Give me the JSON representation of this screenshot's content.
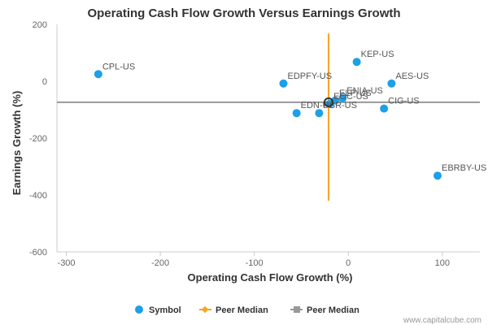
{
  "chart_data": {
    "type": "scatter",
    "title": "Operating Cash Flow Growth Versus Earnings Growth",
    "xlabel": "Operating Cash Flow Growth (%)",
    "ylabel": "Earnings Growth (%)",
    "xlim": [
      -310,
      140
    ],
    "ylim": [
      -600,
      200
    ],
    "xticks": [
      -300,
      -200,
      -100,
      0,
      100
    ],
    "xtick_labels": [
      "-300",
      "-200",
      "-100",
      "0",
      "100"
    ],
    "yticks": [
      -600,
      -400,
      -200,
      0,
      200
    ],
    "ytick_labels": [
      "-600",
      "-400",
      "-200",
      "0",
      "200"
    ],
    "grid": false,
    "legend_position": "bottom",
    "series": [
      {
        "name": "Symbol",
        "color": "#1ca0e8",
        "points": [
          {
            "label": "CPL-US",
            "x": -266,
            "y": 25
          },
          {
            "label": "EDPFY-US",
            "x": -69,
            "y": -8
          },
          {
            "label": "KEP-US",
            "x": 9,
            "y": 68
          },
          {
            "label": "AES-US",
            "x": 46,
            "y": -8
          },
          {
            "label": "ENIA-US",
            "x": -6,
            "y": -60
          },
          {
            "label": "ELP-US",
            "x": -14,
            "y": -68
          },
          {
            "label": "EOC-US",
            "x": -20,
            "y": -80
          },
          {
            "label": "EDN-US",
            "x": -55,
            "y": -112
          },
          {
            "label": "PBR-US",
            "x": -31,
            "y": -112
          },
          {
            "label": "CIG-US",
            "x": 38,
            "y": -96
          },
          {
            "label": "EBRBY-US",
            "x": 95,
            "y": -332
          }
        ]
      },
      {
        "name": "Peer Median",
        "type": "vertical-line",
        "color": "#f5a623",
        "x": -21,
        "y_range": [
          -420,
          168
        ]
      },
      {
        "name": "Peer Median",
        "type": "horizontal-line",
        "color": "#999999",
        "y": -74,
        "x_range": [
          -310,
          140
        ]
      }
    ],
    "highlight": {
      "x": -21,
      "y": -74
    }
  },
  "credit": "www.capitalcube.com"
}
